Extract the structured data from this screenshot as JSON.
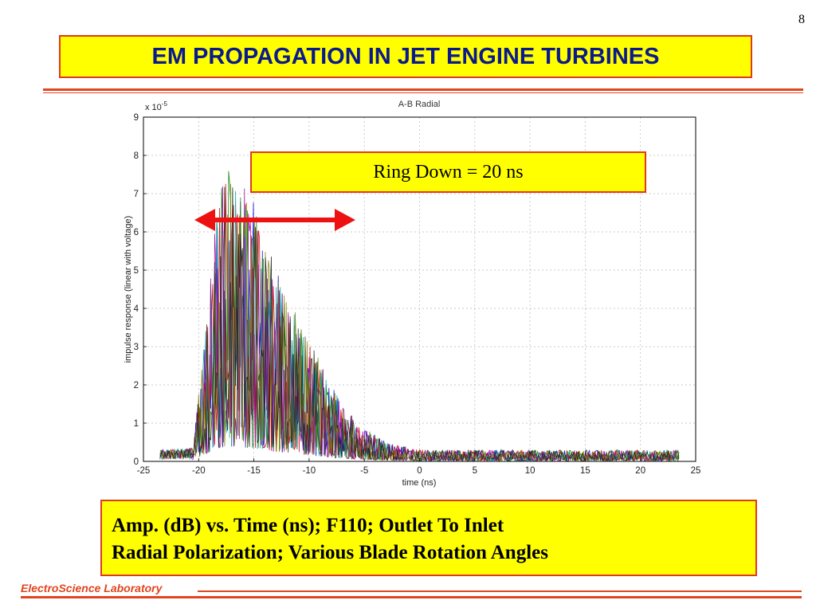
{
  "slide": {
    "page_number": "8",
    "title": "EM PROPAGATION IN JET ENGINE TURBINES",
    "annotation": "Ring Down = 20 ns",
    "caption": {
      "line1": "Amp. (dB) vs. Time (ns); F110; Outlet To Inlet",
      "line2": "Radial Polarization; Various Blade Rotation Angles"
    },
    "footer": "ElectroScience Laboratory"
  },
  "colors": {
    "title_text": "#0a1a8c",
    "box_fill": "#ffff00",
    "box_border": "#e03a1e",
    "rule": "#e0451f",
    "arrow": "#ee1111"
  },
  "chart_data": {
    "type": "line",
    "title": "A-B Radial",
    "xlabel": "time (ns)",
    "ylabel": "impulse response (linear with voltage)",
    "y_multiplier_label": "x 10",
    "y_multiplier_exp": "-5",
    "xlim": [
      -25,
      25
    ],
    "ylim": [
      0,
      9
    ],
    "xticks": [
      -25,
      -20,
      -15,
      -10,
      -5,
      0,
      5,
      10,
      15,
      20,
      25
    ],
    "yticks": [
      0,
      1,
      2,
      3,
      4,
      5,
      6,
      7,
      8,
      9
    ],
    "grid": true,
    "x_range": [
      -23.5,
      23.5
    ],
    "arrow_span": [
      -20,
      -5
    ],
    "series_colors": [
      "#0000cc",
      "#008000",
      "#cc0000",
      "#00a0a0",
      "#a000a0",
      "#808000",
      "#202020"
    ],
    "envelope": [
      {
        "x": -23.5,
        "y": 0.25
      },
      {
        "x": -20.5,
        "y": 0.3
      },
      {
        "x": -19.5,
        "y": 3.2
      },
      {
        "x": -18.5,
        "y": 6.5
      },
      {
        "x": -17.5,
        "y": 7.8
      },
      {
        "x": -16.5,
        "y": 7.4
      },
      {
        "x": -15,
        "y": 6.8
      },
      {
        "x": -13,
        "y": 5.0
      },
      {
        "x": -11,
        "y": 3.8
      },
      {
        "x": -9,
        "y": 2.6
      },
      {
        "x": -7,
        "y": 1.5
      },
      {
        "x": -5,
        "y": 0.9
      },
      {
        "x": -3,
        "y": 0.5
      },
      {
        "x": 0,
        "y": 0.3
      },
      {
        "x": 23.5,
        "y": 0.3
      }
    ]
  }
}
